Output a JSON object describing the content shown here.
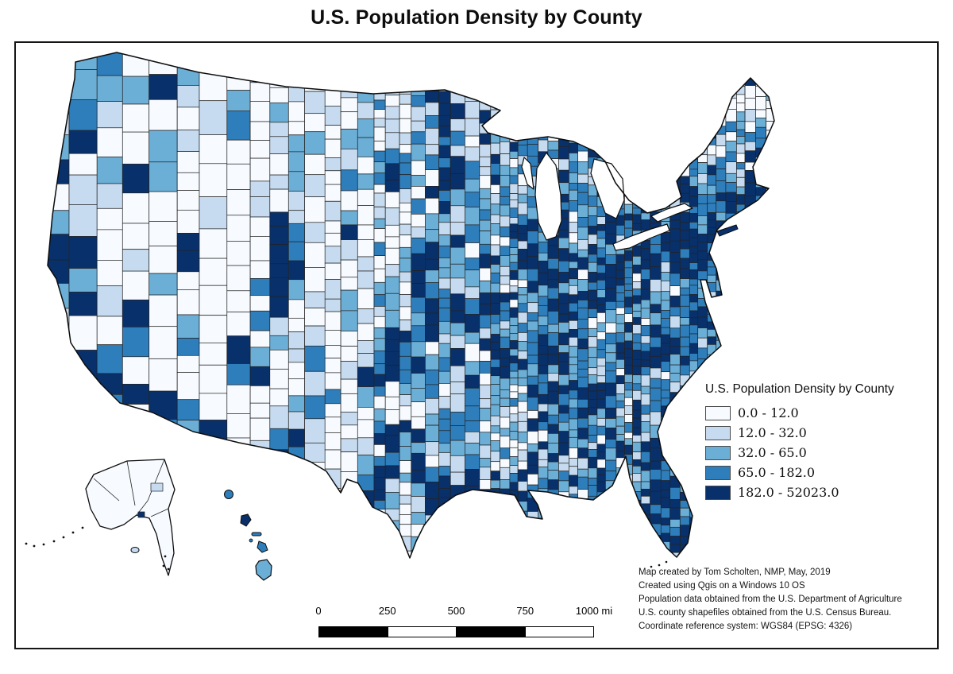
{
  "title": "U.S. Population Density by County",
  "legend": {
    "title": "U.S. Population Density by County",
    "classes": [
      {
        "label": "0.0 - 12.0",
        "color": "#f7fbff"
      },
      {
        "label": "12.0 - 32.0",
        "color": "#c6dbef"
      },
      {
        "label": "32.0 - 65.0",
        "color": "#6baed6"
      },
      {
        "label": "65.0 - 182.0",
        "color": "#2e7ebc"
      },
      {
        "label": "182.0 - 52023.0",
        "color": "#08306b"
      }
    ]
  },
  "scalebar": {
    "labels": [
      "0",
      "250",
      "500",
      "750",
      "1000 mi"
    ],
    "segment_colors": [
      "#000000",
      "#ffffff",
      "#000000",
      "#ffffff"
    ]
  },
  "attribution": {
    "lines": [
      "Map created by Tom Scholten, NMP, May, 2019",
      "Created using Qgis on a Windows 10 OS",
      "Population data obtained from the U.S. Department of Agriculture",
      "U.S. county shapefiles obtained from the U.S. Census Bureau.",
      "Coordinate reference system: WGS84 (EPSG: 4326)"
    ]
  },
  "map": {
    "county_border_color": "#232323",
    "outline_color": "#0c0c0c",
    "water_color": "#ffffff"
  }
}
